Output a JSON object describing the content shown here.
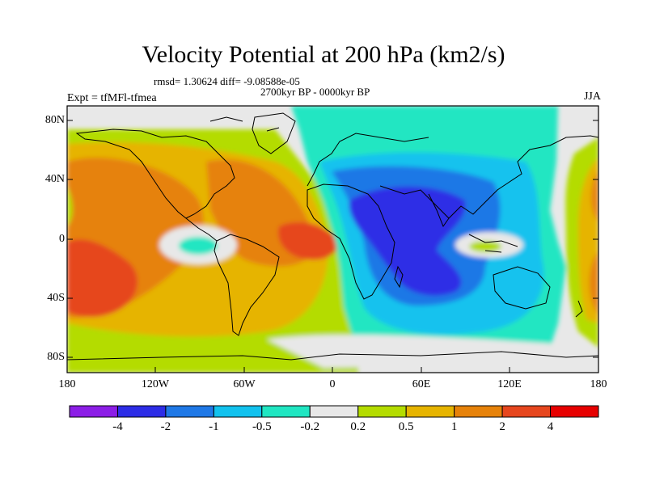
{
  "title": "Velocity Potential at 200 hPa (km2/s)",
  "stats_line": "rmsd= 1.30624 diff= -9.08588e-05",
  "period": "2700kyr BP - 0000kyr BP",
  "experiment": "Expt = tfMFl-tfmea",
  "season": "JJA",
  "chart_data": {
    "type": "heatmap",
    "title": "Velocity Potential at 200 hPa (km2/s)",
    "projection": "cylindrical equidistant",
    "x_axis": {
      "range": [
        -180,
        180
      ],
      "ticks": [
        "180",
        "120W",
        "60W",
        "0",
        "60E",
        "120E",
        "180"
      ]
    },
    "y_axis": {
      "range": [
        -90,
        90
      ],
      "ticks": [
        "80N",
        "40N",
        "0",
        "40S",
        "80S"
      ]
    },
    "colorbar": {
      "levels": [
        "-4",
        "-2",
        "-1",
        "-0.5",
        "-0.2",
        "0.2",
        "0.5",
        "1",
        "2",
        "4"
      ],
      "colors": [
        "#8c1ee6",
        "#2d2de6",
        "#1f78e6",
        "#12c2ee",
        "#20e6c2",
        "#e8e8e8",
        "#b4dc00",
        "#e6b400",
        "#e6820a",
        "#e6461e",
        "#e60000"
      ]
    },
    "features": [
      {
        "region": "Asian monsoon / Indian Ocean",
        "sign": "negative",
        "min_level": "-2"
      },
      {
        "region": "Eastern Pacific / Americas",
        "sign": "positive",
        "max_level": "2"
      },
      {
        "region": "Tropical Atlantic",
        "sign": "positive",
        "max_level": "2"
      }
    ]
  }
}
